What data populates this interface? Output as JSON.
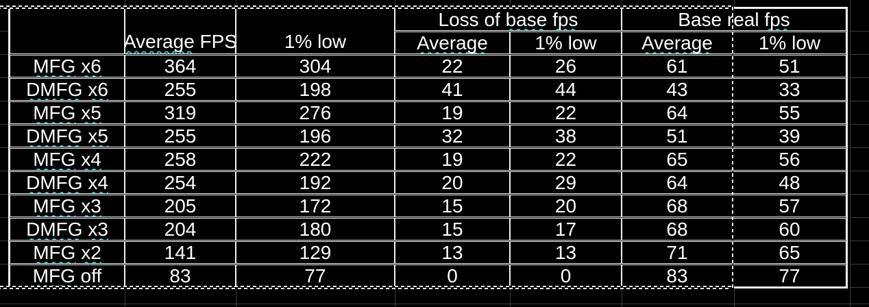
{
  "theme": {
    "background": "#000000",
    "cell_border": "#f0f0f0",
    "text": "#ffffff",
    "squiggle": "#2cc3c3",
    "faint_grid": "#3c3c3c",
    "ants": "#f0f0f0"
  },
  "table": {
    "header": {
      "corner": "",
      "average_fps": {
        "segments": [
          {
            "t": "Average",
            "sq": true
          },
          {
            "t": " FPS"
          }
        ]
      },
      "pct_low": {
        "segments": [
          {
            "t": "1% low"
          }
        ]
      },
      "groups": [
        {
          "segments": [
            {
              "t": "Loss of "
            },
            {
              "t": "base",
              "sq": true
            },
            {
              "t": " "
            },
            {
              "t": "fps",
              "sq": true
            }
          ]
        },
        {
          "segments": [
            {
              "t": "Base real "
            },
            {
              "t": "fps",
              "sq": true
            }
          ]
        }
      ],
      "subs": [
        {
          "segments": [
            {
              "t": "Average",
              "sq": true
            }
          ]
        },
        {
          "segments": [
            {
              "t": "1% low"
            }
          ]
        },
        {
          "segments": [
            {
              "t": "Average",
              "sq": true
            }
          ]
        },
        {
          "segments": [
            {
              "t": "1% low"
            }
          ]
        }
      ]
    },
    "rows": [
      {
        "label": {
          "segments": [
            {
              "t": "MFG",
              "sq": true
            },
            {
              "t": " "
            },
            {
              "t": "x6",
              "sq": true
            }
          ]
        },
        "values": [
          "364",
          "304",
          "22",
          "26",
          "61",
          "51"
        ]
      },
      {
        "label": {
          "segments": [
            {
              "t": "DMFG",
              "sq": true
            },
            {
              "t": " "
            },
            {
              "t": "x6",
              "sq": true
            }
          ]
        },
        "values": [
          "255",
          "198",
          "41",
          "44",
          "43",
          "33"
        ]
      },
      {
        "label": {
          "segments": [
            {
              "t": "MFG",
              "sq": true
            },
            {
              "t": " "
            },
            {
              "t": "x5",
              "sq": true
            }
          ]
        },
        "values": [
          "319",
          "276",
          "19",
          "22",
          "64",
          "55"
        ]
      },
      {
        "label": {
          "segments": [
            {
              "t": "DMFG",
              "sq": true
            },
            {
              "t": " "
            },
            {
              "t": "x5",
              "sq": true
            }
          ]
        },
        "values": [
          "255",
          "196",
          "32",
          "38",
          "51",
          "39"
        ]
      },
      {
        "label": {
          "segments": [
            {
              "t": "MFG",
              "sq": true
            },
            {
              "t": " "
            },
            {
              "t": "x4",
              "sq": true
            }
          ]
        },
        "values": [
          "258",
          "222",
          "19",
          "22",
          "65",
          "56"
        ]
      },
      {
        "label": {
          "segments": [
            {
              "t": "DMFG",
              "sq": true
            },
            {
              "t": " "
            },
            {
              "t": "x4",
              "sq": true
            }
          ]
        },
        "values": [
          "254",
          "192",
          "20",
          "29",
          "64",
          "48"
        ]
      },
      {
        "label": {
          "segments": [
            {
              "t": "MFG",
              "sq": true
            },
            {
              "t": " "
            },
            {
              "t": "x3",
              "sq": true
            }
          ]
        },
        "values": [
          "205",
          "172",
          "15",
          "20",
          "68",
          "57"
        ]
      },
      {
        "label": {
          "segments": [
            {
              "t": "DMFG",
              "sq": true
            },
            {
              "t": " "
            },
            {
              "t": "x3",
              "sq": true
            }
          ]
        },
        "values": [
          "204",
          "180",
          "15",
          "17",
          "68",
          "60"
        ]
      },
      {
        "label": {
          "segments": [
            {
              "t": "MFG",
              "sq": true
            },
            {
              "t": " "
            },
            {
              "t": "x2",
              "sq": true
            }
          ]
        },
        "values": [
          "141",
          "129",
          "13",
          "13",
          "71",
          "65"
        ]
      },
      {
        "label": {
          "segments": [
            {
              "t": "MFG",
              "sq": true
            },
            {
              "t": " off"
            }
          ]
        },
        "values": [
          "83",
          "77",
          "0",
          "0",
          "83",
          "77"
        ]
      }
    ]
  }
}
